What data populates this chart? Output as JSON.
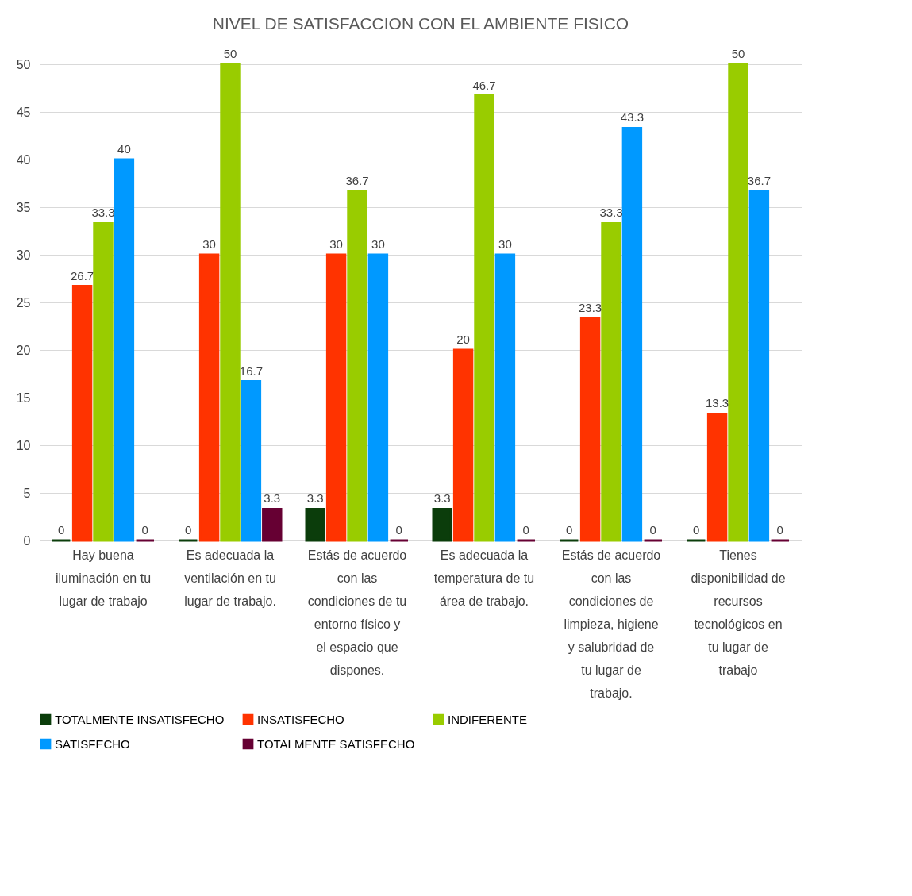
{
  "chart_data": {
    "type": "bar",
    "title": "NIVEL DE SATISFACCION CON EL AMBIENTE FISICO",
    "categories": [
      "Hay buena iluminación en tu lugar de trabajo",
      "Es adecuada la ventilación en tu lugar de trabajo.",
      "Estás de acuerdo con las condiciones de tu entorno físico y el espacio que dispones.",
      "Es adecuada la temperatura de tu área de trabajo.",
      "Estás de acuerdo con las condiciones de limpieza, higiene y salubridad de tu lugar de trabajo.",
      "Tienes disponibilidad de recursos tecnológicos en tu lugar de trabajo"
    ],
    "series": [
      {
        "name": "TOTALMENTE INSATISFECHO",
        "color": "#0b3d0b",
        "values": [
          0,
          0,
          3.3,
          3.3,
          0,
          0
        ]
      },
      {
        "name": "INSATISFECHO",
        "color": "#ff3300",
        "values": [
          26.7,
          30,
          30,
          20,
          23.3,
          13.3
        ]
      },
      {
        "name": "INDIFERENTE",
        "color": "#99cc00",
        "values": [
          33.3,
          50,
          36.7,
          46.7,
          33.3,
          50
        ]
      },
      {
        "name": "SATISFECHO",
        "color": "#0099ff",
        "values": [
          40,
          16.7,
          30,
          30,
          43.3,
          36.7
        ]
      },
      {
        "name": "TOTALMENTE SATISFECHO",
        "color": "#660033",
        "values": [
          0,
          3.3,
          0,
          0,
          0,
          0
        ]
      }
    ],
    "ylim": [
      0,
      50
    ],
    "yticks": [
      0,
      5,
      10,
      15,
      20,
      25,
      30,
      35,
      40,
      45,
      50
    ],
    "grid": true,
    "legend": "bottom",
    "data_labels": true
  }
}
